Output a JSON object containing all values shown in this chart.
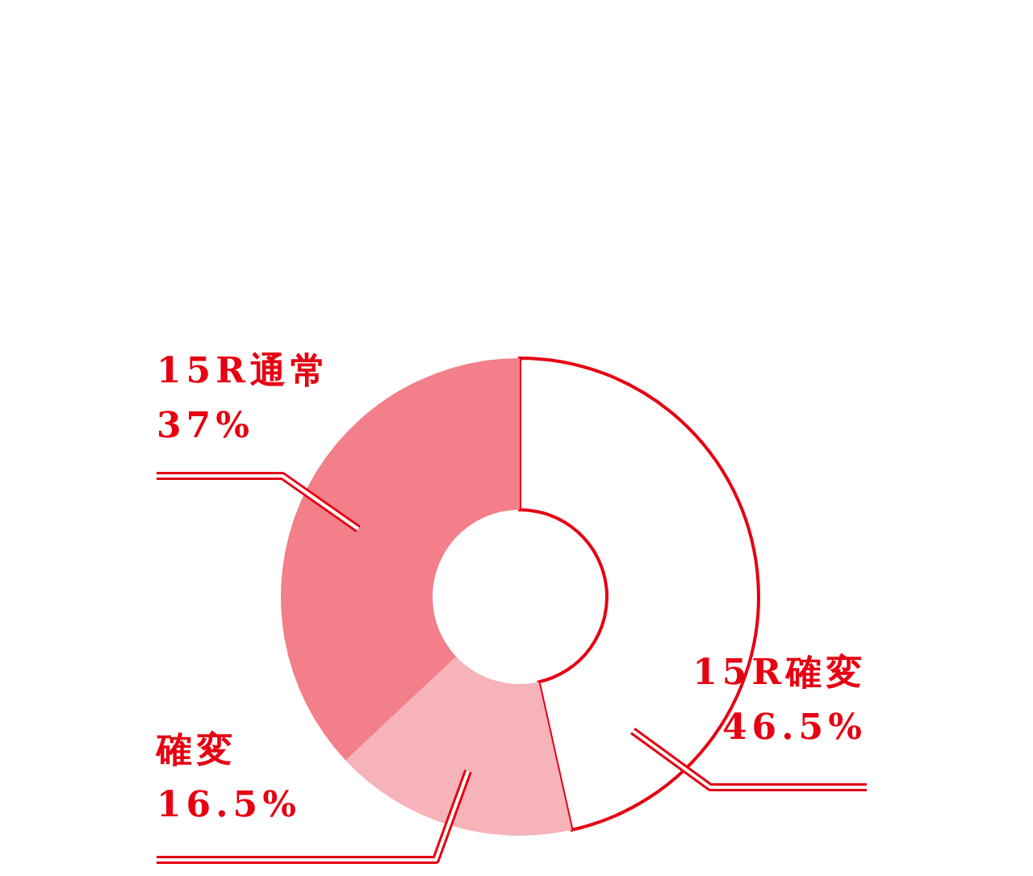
{
  "chart_data": {
    "type": "donut",
    "categories": [
      "15R確変",
      "確変",
      "15R通常"
    ],
    "values": [
      46.5,
      16.5,
      37
    ],
    "colors": [
      "#ffffff",
      "#f6b3ba",
      "#f27f89"
    ],
    "value_labels": [
      "46.5%",
      "16.5%",
      "37%"
    ]
  }
}
